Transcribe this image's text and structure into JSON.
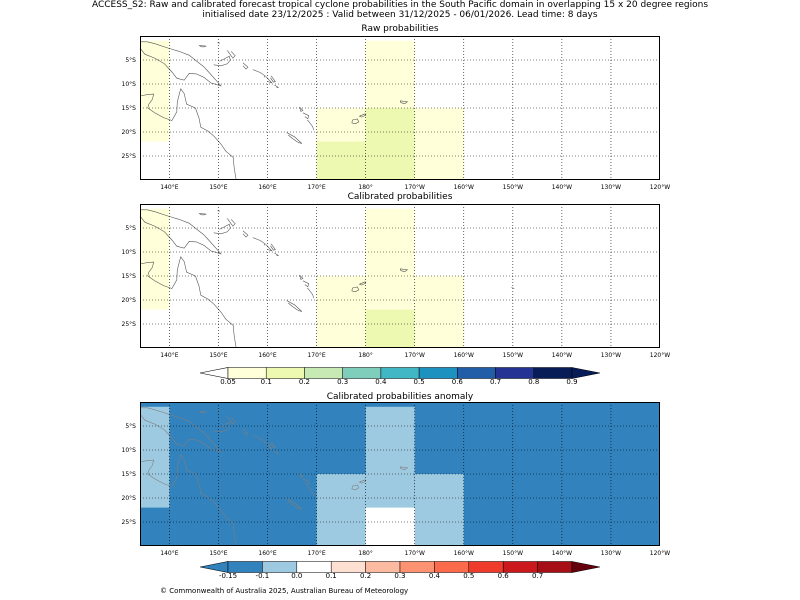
{
  "header": {
    "title_line1": "ACCESS_S2: Raw and calibrated forecast tropical cyclone probabilities in the South Pacific domain in overlapping 15 x 20 degree regions",
    "title_line2": "initialised date 23/12/2025 :  Valid between 31/12/2025 - 06/01/2026. Lead time: 8 days"
  },
  "map": {
    "lon_range": [
      134,
      240
    ],
    "lat_range": [
      -30,
      0
    ],
    "lon_ticks": [
      140,
      150,
      160,
      170,
      180,
      190,
      200,
      210,
      220,
      230,
      240
    ],
    "lon_tick_labels": [
      "140°E",
      "150°E",
      "160°E",
      "170°E",
      "180°",
      "170°W",
      "160°W",
      "150°W",
      "140°W",
      "130°W",
      "120°W"
    ],
    "lat_ticks": [
      -5,
      -10,
      -15,
      -20,
      -25
    ],
    "lat_tick_labels": [
      "5°S",
      "10°S",
      "15°S",
      "20°S",
      "25°S"
    ],
    "coastline_color": "#555555"
  },
  "panels": [
    {
      "title": "Raw probabilities",
      "background": "#ffffff",
      "cells": [
        {
          "lon": [
            134,
            140
          ],
          "lat": [
            -17,
            -1
          ],
          "color": "#ffffd9"
        },
        {
          "lon": [
            134,
            140
          ],
          "lat": [
            -22,
            -17
          ],
          "color": "#ffffd9"
        },
        {
          "lon": [
            170,
            180
          ],
          "lat": [
            -30,
            -15
          ],
          "color": "#ffffd9"
        },
        {
          "lon": [
            170,
            180
          ],
          "lat": [
            -30,
            -22
          ],
          "color": "#edf8b1"
        },
        {
          "lon": [
            180,
            190
          ],
          "lat": [
            -15,
            -1
          ],
          "color": "#ffffd9"
        },
        {
          "lon": [
            180,
            190
          ],
          "lat": [
            -30,
            -15
          ],
          "color": "#edf8b1"
        },
        {
          "lon": [
            190,
            200
          ],
          "lat": [
            -30,
            -15
          ],
          "color": "#ffffd9"
        }
      ]
    },
    {
      "title": "Calibrated probabilities",
      "background": "#ffffff",
      "cells": [
        {
          "lon": [
            134,
            140
          ],
          "lat": [
            -22,
            -1
          ],
          "color": "#ffffd9"
        },
        {
          "lon": [
            170,
            180
          ],
          "lat": [
            -30,
            -15
          ],
          "color": "#ffffd9"
        },
        {
          "lon": [
            180,
            190
          ],
          "lat": [
            -22,
            -1
          ],
          "color": "#ffffd9"
        },
        {
          "lon": [
            180,
            190
          ],
          "lat": [
            -30,
            -22
          ],
          "color": "#edf8b1"
        },
        {
          "lon": [
            190,
            200
          ],
          "lat": [
            -30,
            -15
          ],
          "color": "#ffffd9"
        }
      ]
    },
    {
      "title": "Calibrated probabilities anomaly",
      "background": "#3182bd",
      "cells": [
        {
          "lon": [
            134,
            140
          ],
          "lat": [
            -22,
            -1
          ],
          "color": "#9ecae1"
        },
        {
          "lon": [
            170,
            190
          ],
          "lat": [
            -30,
            -15
          ],
          "color": "#9ecae1"
        },
        {
          "lon": [
            180,
            190
          ],
          "lat": [
            -15,
            -1
          ],
          "color": "#9ecae1"
        },
        {
          "lon": [
            190,
            200
          ],
          "lat": [
            -30,
            -15
          ],
          "color": "#9ecae1"
        },
        {
          "lon": [
            180,
            190
          ],
          "lat": [
            -30,
            -22
          ],
          "color": "#ffffff"
        }
      ]
    }
  ],
  "colorbars": [
    {
      "name": "probability-colorbar",
      "under_color": "#ffffff",
      "over_color": "#081d58",
      "colors": [
        "#ffffd9",
        "#edf8b1",
        "#c7e9b4",
        "#7fcdbb",
        "#41b6c4",
        "#1d91c0",
        "#225ea8",
        "#253494",
        "#081d58"
      ],
      "labels": [
        "0.05",
        "0.1",
        "0.2",
        "0.3",
        "0.4",
        "0.5",
        "0.6",
        "0.7",
        "0.8",
        "0.9"
      ]
    },
    {
      "name": "anomaly-colorbar",
      "under_color": "#3182bd",
      "over_color": "#67000d",
      "colors": [
        "#3182bd",
        "#9ecae1",
        "#ffffff",
        "#fee0d2",
        "#fcbba1",
        "#fc9272",
        "#fb6a4a",
        "#ef3b2c",
        "#cb181d",
        "#a50f15"
      ],
      "labels": [
        "-0.15",
        "-0.1",
        "0.0",
        "0.1",
        "0.2",
        "0.3",
        "0.4",
        "0.5",
        "0.6",
        "0.7"
      ]
    }
  ],
  "footer": {
    "copyright": "© Commonwealth of Australia 2025, Australian Bureau of Meteorology"
  }
}
